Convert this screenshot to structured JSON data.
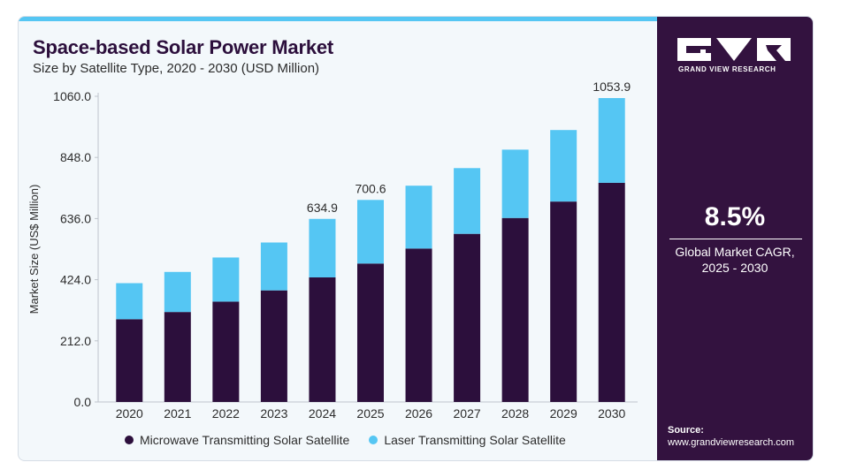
{
  "header": {
    "title": "Space-based Solar Power Market",
    "subtitle": "Size by Satellite Type, 2020 - 2030 (USD Million)"
  },
  "chart_data": {
    "type": "bar",
    "stacked": true,
    "categories": [
      "2020",
      "2021",
      "2022",
      "2023",
      "2024",
      "2025",
      "2026",
      "2027",
      "2028",
      "2029",
      "2030"
    ],
    "series": [
      {
        "name": "Microwave Transmitting Solar Satellite",
        "color": "#2c0f3c",
        "values": [
          287,
          312,
          348,
          387,
          432,
          480,
          532,
          583,
          638,
          695,
          760
        ]
      },
      {
        "name": "Laser Transmitting Solar Satellite",
        "color": "#55c6f3",
        "values": [
          125,
          139,
          153,
          166,
          202.9,
          220.6,
          218,
          228,
          237,
          248,
          293.9
        ]
      }
    ],
    "data_labels": {
      "2024": "634.9",
      "2025": "700.6",
      "2030": "1053.9"
    },
    "ylabel": "Market Size (US$ Million)",
    "yticks": [
      "0.0",
      "212.0",
      "424.0",
      "636.0",
      "848.0",
      "1060.0"
    ],
    "ylim": [
      0,
      1060
    ],
    "grid": false,
    "legend_position": "bottom"
  },
  "sidebar": {
    "brand": "GRAND VIEW RESEARCH",
    "cagr_value": "8.5%",
    "cagr_label_line1": "Global Market CAGR,",
    "cagr_label_line2": "2025 - 2030",
    "source_label": "Source:",
    "source_url": "www.grandviewresearch.com"
  }
}
